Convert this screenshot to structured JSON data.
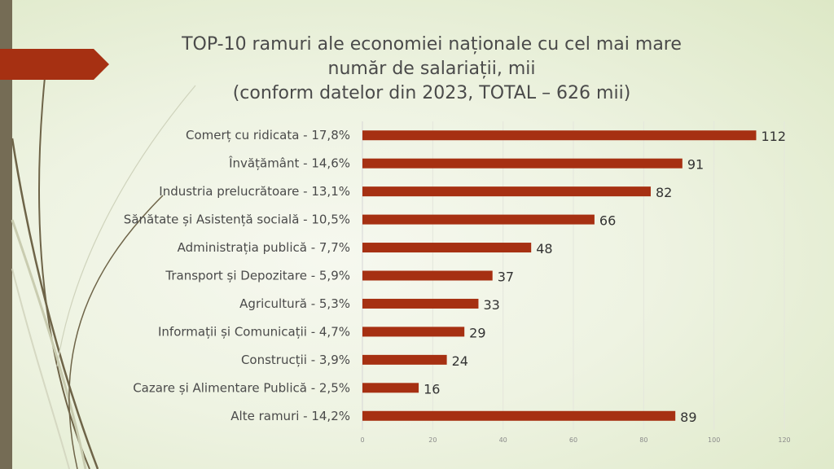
{
  "chart_data": {
    "type": "bar",
    "orientation": "horizontal",
    "title_lines": [
      "TOP-10 ramuri ale economiei naționale cu cel mai mare",
      "număr de salariații, mii",
      "(conform datelor din 2023, TOTAL – 626 mii)"
    ],
    "categories": [
      "Comerț  cu ridicata - 17,8%",
      "Învățământ - 14,6%",
      "Industria prelucrătoare - 13,1%",
      "Sănătate și Asistență socială - 10,5%",
      "Administrația publică - 7,7%",
      "Transport și Depozitare - 5,9%",
      "Agricultură - 5,3%",
      "Informații și Comunicații - 4,7%",
      "Construcții - 3,9%",
      "Cazare și Alimentare Publică - 2,5%",
      "Alte ramuri - 14,2%"
    ],
    "values": [
      112,
      91,
      82,
      66,
      48,
      37,
      33,
      29,
      24,
      16,
      89
    ],
    "xlim": [
      0,
      120
    ],
    "xticks": [
      "0",
      "20",
      "40",
      "60",
      "80",
      "100",
      "120"
    ],
    "grid": true,
    "bar_color": "#a63012",
    "xlabel": "",
    "ylabel": ""
  }
}
